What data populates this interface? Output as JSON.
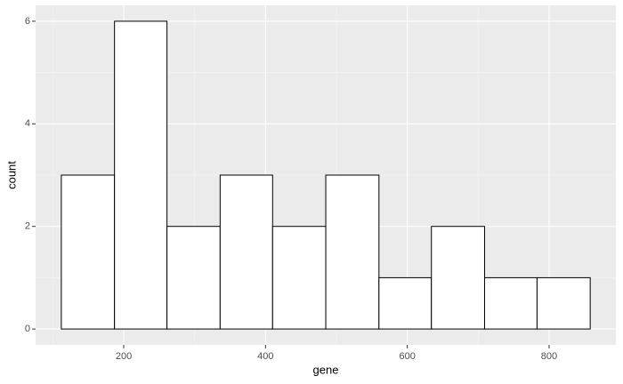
{
  "chart_data": {
    "type": "histogram",
    "x_label": "gene",
    "y_label": "count",
    "bins": [
      112,
      187,
      261,
      336,
      410,
      485,
      560,
      634,
      709,
      783,
      858
    ],
    "values": [
      3,
      6,
      2,
      3,
      2,
      3,
      1,
      2,
      1,
      1
    ],
    "color": "#ffffff",
    "edge_color": "#000000",
    "xlim": [
      75.7,
      894.2
    ],
    "ylim": [
      -0.31,
      6.31
    ],
    "xticks": [
      200,
      400,
      600,
      800
    ],
    "yticks": [
      0,
      2,
      4,
      6
    ],
    "grid": true
  }
}
